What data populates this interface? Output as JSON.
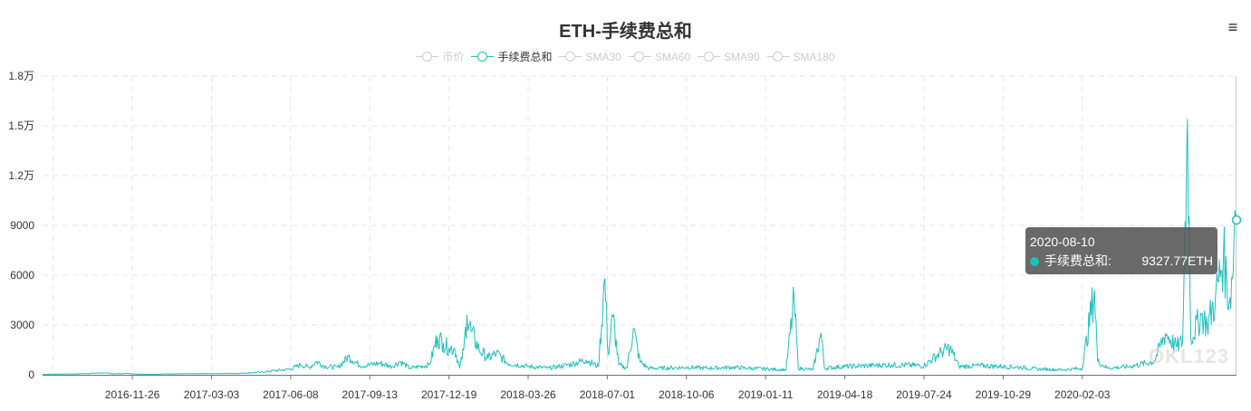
{
  "header": {
    "title": "ETH-手续费总和",
    "menu_icon": "hamburger-menu-icon"
  },
  "legend": {
    "items": [
      {
        "label": "币价",
        "active": false
      },
      {
        "label": "手续费总和",
        "active": true
      },
      {
        "label": "SMA30",
        "active": false
      },
      {
        "label": "SMA60",
        "active": false
      },
      {
        "label": "SMA90",
        "active": false
      },
      {
        "label": "SMA180",
        "active": false
      }
    ]
  },
  "tooltip": {
    "date": "2020-08-10",
    "series": "手续费总和:",
    "value": "9327.77ETH"
  },
  "watermark": "OKL123",
  "colors": {
    "series": "#1fc0bd",
    "grid": "#e6e6e6",
    "axis": "#6e7079",
    "inactive": "#cccccc",
    "tooltip_bg": "#505050"
  },
  "chart_data": {
    "type": "line",
    "title": "ETH-手续费总和",
    "x_ticks": [
      "2016-11-26",
      "2017-03-03",
      "2017-06-08",
      "2017-09-13",
      "2017-12-19",
      "2018-03-26",
      "2018-07-01",
      "2018-10-06",
      "2019-01-11",
      "2019-04-18",
      "2019-07-24",
      "2019-10-29",
      "2020-02-03"
    ],
    "y_ticks": [
      "0",
      "3000",
      "6000",
      "9000",
      "1.2万",
      "1.5万",
      "1.8万"
    ],
    "ylim": [
      0,
      18000
    ],
    "xlim": [
      "2016-08-08",
      "2020-08-10"
    ],
    "grid": true,
    "legend_position": "top-center",
    "series": [
      {
        "name": "手续费总和",
        "unit": "ETH",
        "points": [
          [
            "2016-08-08",
            30
          ],
          [
            "2016-09-15",
            50
          ],
          [
            "2016-10-10",
            90
          ],
          [
            "2016-10-20",
            120
          ],
          [
            "2016-11-01",
            60
          ],
          [
            "2016-11-20",
            80
          ],
          [
            "2016-12-01",
            40
          ],
          [
            "2016-12-20",
            30
          ],
          [
            "2017-01-15",
            60
          ],
          [
            "2017-02-15",
            60
          ],
          [
            "2017-03-03",
            70
          ],
          [
            "2017-04-01",
            80
          ],
          [
            "2017-05-01",
            150
          ],
          [
            "2017-05-20",
            250
          ],
          [
            "2017-06-08",
            350
          ],
          [
            "2017-06-20",
            600
          ],
          [
            "2017-07-01",
            450
          ],
          [
            "2017-07-10",
            800
          ],
          [
            "2017-07-20",
            500
          ],
          [
            "2017-08-05",
            450
          ],
          [
            "2017-08-18",
            1100
          ],
          [
            "2017-09-01",
            550
          ],
          [
            "2017-09-13",
            600
          ],
          [
            "2017-09-25",
            700
          ],
          [
            "2017-10-10",
            500
          ],
          [
            "2017-10-20",
            800
          ],
          [
            "2017-11-01",
            400
          ],
          [
            "2017-11-25",
            600
          ],
          [
            "2017-12-05",
            2300
          ],
          [
            "2017-12-12",
            1900
          ],
          [
            "2017-12-19",
            1600
          ],
          [
            "2017-12-26",
            1600
          ],
          [
            "2018-01-01",
            400
          ],
          [
            "2018-01-06",
            1500
          ],
          [
            "2018-01-10",
            3600
          ],
          [
            "2018-01-15",
            2600
          ],
          [
            "2018-01-25",
            1500
          ],
          [
            "2018-02-05",
            1000
          ],
          [
            "2018-02-15",
            1300
          ],
          [
            "2018-03-01",
            700
          ],
          [
            "2018-03-26",
            500
          ],
          [
            "2018-04-20",
            400
          ],
          [
            "2018-05-15",
            600
          ],
          [
            "2018-06-05",
            900
          ],
          [
            "2018-06-20",
            500
          ],
          [
            "2018-06-28",
            5800
          ],
          [
            "2018-07-02",
            1200
          ],
          [
            "2018-07-08",
            3500
          ],
          [
            "2018-07-15",
            600
          ],
          [
            "2018-07-25",
            400
          ],
          [
            "2018-08-02",
            2800
          ],
          [
            "2018-08-10",
            800
          ],
          [
            "2018-08-20",
            400
          ],
          [
            "2018-09-05",
            400
          ],
          [
            "2018-10-06",
            450
          ],
          [
            "2018-11-01",
            400
          ],
          [
            "2018-12-01",
            450
          ],
          [
            "2018-12-20",
            400
          ],
          [
            "2019-01-11",
            350
          ],
          [
            "2019-02-05",
            300
          ],
          [
            "2019-02-15",
            4500
          ],
          [
            "2019-02-20",
            400
          ],
          [
            "2019-03-10",
            300
          ],
          [
            "2019-03-20",
            2500
          ],
          [
            "2019-03-24",
            400
          ],
          [
            "2019-04-18",
            500
          ],
          [
            "2019-05-15",
            550
          ],
          [
            "2019-06-15",
            600
          ],
          [
            "2019-07-24",
            550
          ],
          [
            "2019-08-15",
            1400
          ],
          [
            "2019-08-25",
            1600
          ],
          [
            "2019-09-05",
            500
          ],
          [
            "2019-10-01",
            550
          ],
          [
            "2019-10-29",
            500
          ],
          [
            "2019-11-20",
            450
          ],
          [
            "2019-12-10",
            350
          ],
          [
            "2020-01-10",
            300
          ],
          [
            "2020-02-03",
            400
          ],
          [
            "2020-02-18",
            5100
          ],
          [
            "2020-02-22",
            800
          ],
          [
            "2020-03-05",
            400
          ],
          [
            "2020-04-01",
            500
          ],
          [
            "2020-05-01",
            800
          ],
          [
            "2020-05-15",
            2500
          ],
          [
            "2020-05-28",
            1700
          ],
          [
            "2020-06-05",
            2000
          ],
          [
            "2020-06-11",
            15400
          ],
          [
            "2020-06-15",
            2200
          ],
          [
            "2020-06-28",
            3600
          ],
          [
            "2020-07-05",
            3000
          ],
          [
            "2020-07-15",
            4500
          ],
          [
            "2020-07-25",
            7300
          ],
          [
            "2020-08-01",
            4300
          ],
          [
            "2020-08-05",
            5800
          ],
          [
            "2020-08-08",
            9900
          ],
          [
            "2020-08-10",
            9327.77
          ]
        ]
      }
    ]
  }
}
